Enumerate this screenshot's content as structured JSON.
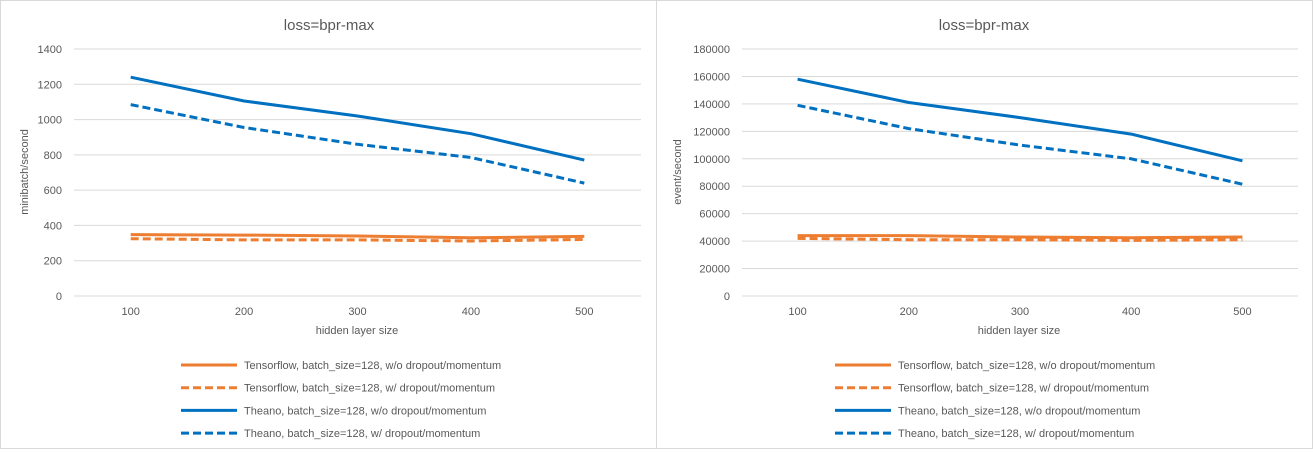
{
  "chart_data": [
    {
      "type": "line",
      "title": "loss=bpr-max",
      "xlabel": "hidden layer size",
      "ylabel": "minibatch/second",
      "categories": [
        "100",
        "200",
        "300",
        "400",
        "500"
      ],
      "ylim": [
        0,
        1400
      ],
      "yticks": [
        "0",
        "200",
        "400",
        "600",
        "800",
        "1000",
        "1200",
        "1400"
      ],
      "grid": true,
      "legend_position": "bottom",
      "series": [
        {
          "name": "Tensorflow, batch_size=128, w/o dropout/momentum",
          "values": [
            348,
            345,
            340,
            330,
            338
          ],
          "color": "#ED7D31",
          "dash": "solid"
        },
        {
          "name": "Tensorflow, batch_size=128, w/ dropout/momentum",
          "values": [
            325,
            318,
            318,
            312,
            320
          ],
          "color": "#ED7D31",
          "dash": "dashed"
        },
        {
          "name": "Theano, batch_size=128, w/o dropout/momentum",
          "values": [
            1240,
            1105,
            1020,
            920,
            770
          ],
          "color": "#0070C0",
          "dash": "solid"
        },
        {
          "name": "Theano, batch_size=128, w/ dropout/momentum",
          "values": [
            1085,
            955,
            860,
            785,
            640
          ],
          "color": "#0070C0",
          "dash": "dashed"
        }
      ]
    },
    {
      "type": "line",
      "title": "loss=bpr-max",
      "xlabel": "hidden layer size",
      "ylabel": "event/second",
      "categories": [
        "100",
        "200",
        "300",
        "400",
        "500"
      ],
      "ylim": [
        0,
        180000
      ],
      "yticks": [
        "0",
        "20000",
        "40000",
        "60000",
        "80000",
        "100000",
        "120000",
        "140000",
        "160000",
        "180000"
      ],
      "grid": true,
      "legend_position": "bottom",
      "series": [
        {
          "name": "Tensorflow, batch_size=128, w/o dropout/momentum",
          "values": [
            44000,
            44000,
            43000,
            42500,
            43000
          ],
          "color": "#ED7D31",
          "dash": "solid"
        },
        {
          "name": "Tensorflow, batch_size=128, w/ dropout/momentum",
          "values": [
            42000,
            41000,
            41000,
            40500,
            41000
          ],
          "color": "#ED7D31",
          "dash": "dashed"
        },
        {
          "name": "Theano, batch_size=128, w/o dropout/momentum",
          "values": [
            158000,
            141000,
            130000,
            118000,
            98500
          ],
          "color": "#0070C0",
          "dash": "solid"
        },
        {
          "name": "Theano, batch_size=128, w/ dropout/momentum",
          "values": [
            139000,
            122000,
            110000,
            100000,
            81500
          ],
          "color": "#0070C0",
          "dash": "dashed"
        }
      ]
    }
  ]
}
